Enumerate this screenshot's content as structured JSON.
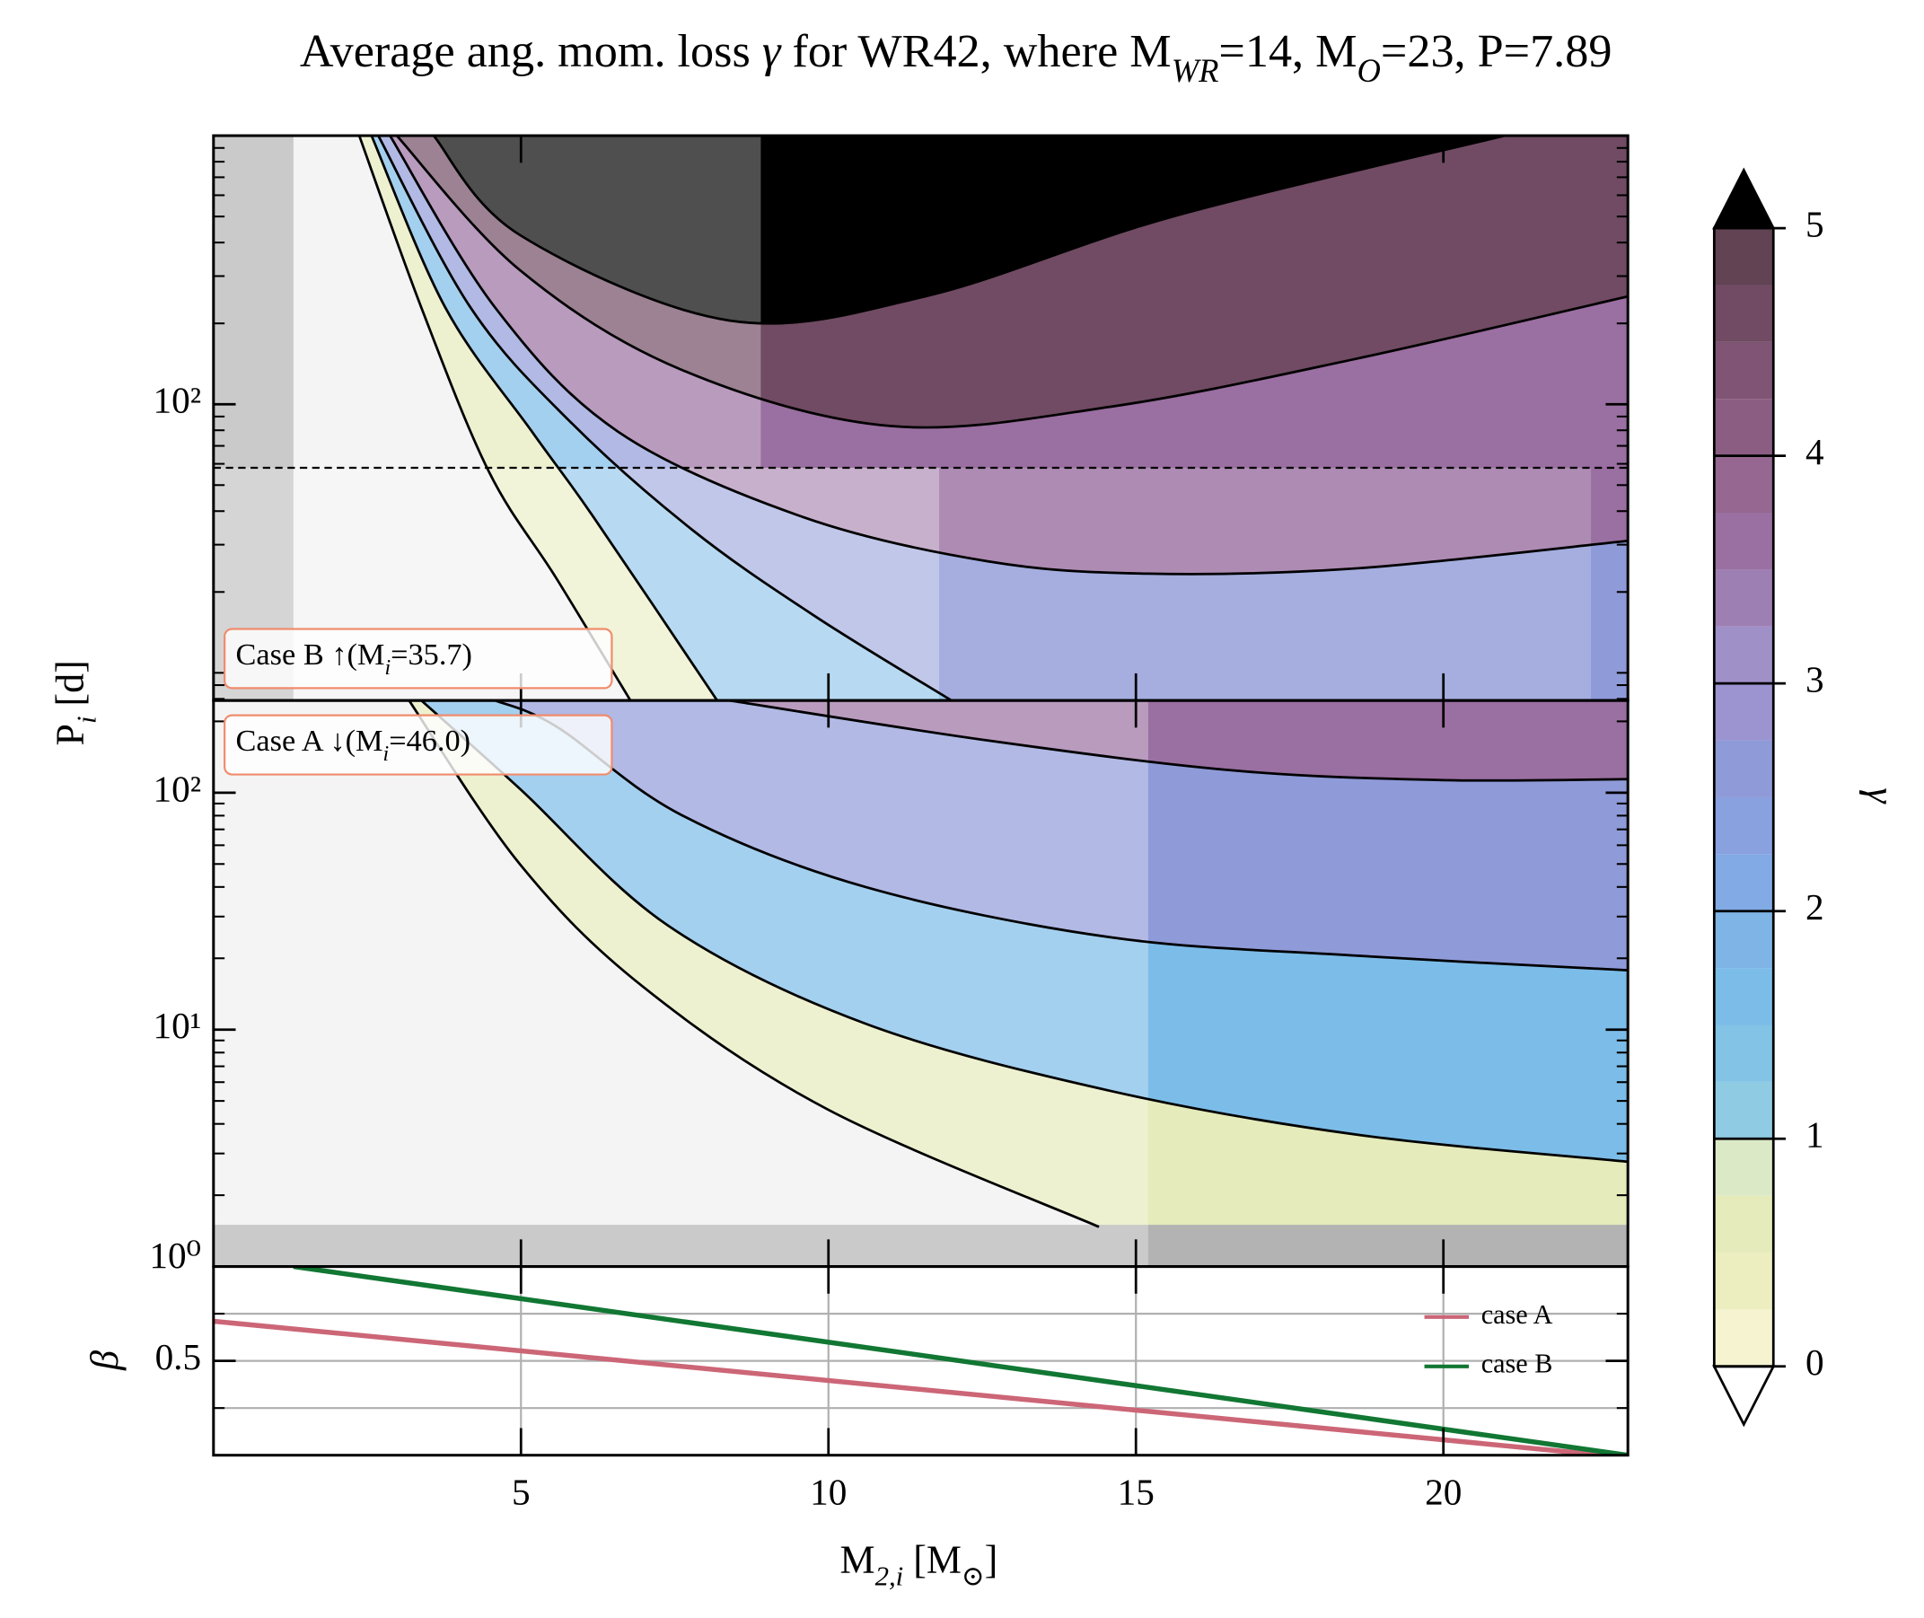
{
  "chart_data": {
    "type": "contour",
    "title": [
      {
        "text": "Average ang. mom. loss "
      },
      {
        "text": "γ",
        "italic": true
      },
      {
        "text": " for WR42, where M"
      },
      {
        "text": "WR",
        "sub": true,
        "italic": true
      },
      {
        "text": "=14, M"
      },
      {
        "text": "O",
        "sub": true,
        "italic": true
      },
      {
        "text": "=23, P=7.89"
      }
    ],
    "xlabel": [
      {
        "text": "M"
      },
      {
        "text": "2,i",
        "sub": true,
        "italic": true
      },
      {
        "text": " [M"
      },
      {
        "text": "⊙",
        "sub": true
      },
      {
        "text": "]"
      }
    ],
    "ylabel": [
      {
        "text": "P"
      },
      {
        "text": "i",
        "sub": true,
        "italic": true
      },
      {
        "text": " [d]"
      }
    ],
    "xlim": [
      0,
      23
    ],
    "xticks": [
      5,
      10,
      15,
      20
    ],
    "region_color": "#efefef",
    "invalid_color": "#b3b3b3",
    "line_color": "#000000",
    "panels": [
      {
        "ylim": [
          7.89,
          1000
        ],
        "log": true,
        "yticks": [
          {
            "value": 100,
            "label": "10²"
          }
        ],
        "annotation": [
          {
            "text": "Case B ↑(M"
          },
          {
            "text": "i",
            "sub": true,
            "italic": true
          },
          {
            "text": "=35.7)"
          }
        ],
        "dashed": 58,
        "invalid": [
          {
            "x": [
              0,
              1.3
            ],
            "y": [
              7.89,
              1000
            ]
          }
        ],
        "overlays": [
          {
            "x": [
              0,
              8.9
            ],
            "y": [
              58,
              1000
            ],
            "opacity": 0.31
          },
          {
            "x": [
              0,
              11.8
            ],
            "y": [
              7.89,
              58
            ],
            "opacity": 0.45
          },
          {
            "x": [
              11.8,
              22.4
            ],
            "y": [
              7.89,
              58
            ],
            "opacity": 0.2
          }
        ],
        "contours": [
          {
            "level": 0,
            "x": [
              2.37,
              3.38,
              4.48,
              5.58,
              6.78
            ],
            "y": [
              1000,
              229,
              56,
              22.4,
              7.89
            ]
          },
          {
            "level": 1,
            "x": [
              2.57,
              3.77,
              5.18,
              6.18,
              8.19
            ],
            "y": [
              1000,
              229,
              79,
              38,
              7.89
            ]
          },
          {
            "level": 2,
            "x": [
              2.68,
              4.18,
              5.78,
              7.79,
              9.79,
              12.0
            ],
            "y": [
              1000,
              229,
              87,
              34,
              16.2,
              7.89
            ]
          },
          {
            "level": 3,
            "x": [
              2.87,
              4.58,
              6.58,
              9.59,
              12.6,
              15.2,
              18.6,
              23
            ],
            "y": [
              1000,
              229,
              79,
              38,
              26,
              23.4,
              24.5,
              31
            ]
          },
          {
            "level": 4,
            "x": [
              2.98,
              4.98,
              7.59,
              11.0,
              14.6,
              18.6,
              23
            ],
            "y": [
              1000,
              316,
              135,
              83,
              98,
              148,
              252
            ]
          },
          {
            "level": 5,
            "x": [
              3.58,
              4.98,
              8.39,
              11.6,
              15.6,
              21.0
            ],
            "y": [
              1000,
              427,
              205,
              253,
              500,
              1000
            ]
          }
        ]
      },
      {
        "ylim": [
          1,
          245
        ],
        "log": true,
        "yticks": [
          {
            "value": 1,
            "label": "10⁰"
          },
          {
            "value": 10,
            "label": "10¹"
          },
          {
            "value": 100,
            "label": "10²"
          }
        ],
        "annotation": [
          {
            "text": "Case A ↓(M"
          },
          {
            "text": "i",
            "sub": true,
            "italic": true
          },
          {
            "text": "=46.0)"
          }
        ],
        "invalid": [
          {
            "x": [
              0,
              23
            ],
            "y": [
              1,
              1.5
            ]
          }
        ],
        "overlays": [
          {
            "x": [
              0,
              15.2
            ],
            "y": [
              1,
              245
            ],
            "opacity": 0.31
          }
        ],
        "contours": [
          {
            "level": 0,
            "x": [
              3.18,
              4.98,
              6.98,
              9.99,
              14.4
            ],
            "y": [
              245,
              50,
              15.2,
              4.6,
              1.47
            ]
          },
          {
            "level": 1,
            "x": [
              3.38,
              4.98,
              7.39,
              10.6,
              14.6,
              18.6,
              23
            ],
            "y": [
              245,
              104,
              27.5,
              10.6,
              5.5,
              3.6,
              2.77
            ]
          },
          {
            "level": 2,
            "x": [
              4.58,
              5.58,
              7.59,
              10.6,
              14.6,
              18.6,
              23
            ],
            "y": [
              245,
              190,
              81,
              40,
              24.5,
              20.5,
              17.8
            ]
          },
          {
            "level": 3,
            "x": [
              8.39,
              12.6,
              16.6,
              20.0,
              23
            ],
            "y": [
              245,
              166,
              124,
              113,
              114
            ]
          }
        ]
      }
    ],
    "beta": {
      "ylabel": [
        {
          "text": "β",
          "italic": true
        }
      ],
      "ylim": [
        0,
        1
      ],
      "yticks": [
        0.5
      ],
      "ygrid": [
        0.25,
        0.5,
        0.75
      ],
      "xgrid": true,
      "grid_color": "#b0b0b0",
      "legend": "lower right",
      "series": [
        {
          "name": "case A",
          "color": "#cc6677",
          "x": [
            0,
            22.6
          ],
          "values": [
            0.71,
            0
          ]
        },
        {
          "name": "case B",
          "color": "#117733",
          "x": [
            1.3,
            23
          ],
          "values": [
            1,
            0
          ]
        }
      ]
    },
    "colorbar": {
      "label": [
        {
          "text": "γ",
          "italic": true
        }
      ],
      "lim": [
        0,
        5
      ],
      "ticks": [
        0,
        1,
        2,
        3,
        4,
        5
      ],
      "levels": [
        0,
        0.25,
        0.5,
        0.75,
        1,
        1.25,
        1.5,
        1.75,
        2,
        2.25,
        2.5,
        2.75,
        3,
        3.25,
        3.5,
        3.75,
        4,
        4.25,
        4.5,
        4.75,
        5
      ],
      "colors": [
        "#f5f3d0",
        "#eceec0",
        "#e5ebba",
        "#dce9c7",
        "#8fcbe2",
        "#82c3e6",
        "#7cbce8",
        "#7fb4e6",
        "#82aae4",
        "#8aa1e0",
        "#8f9ad8",
        "#9b94d0",
        "#a090c8",
        "#9d7fb4",
        "#9a6fa1",
        "#956791",
        "#8c5d83",
        "#7f5474",
        "#704b63",
        "#614353"
      ],
      "over": "#000000",
      "under": "#ffffff"
    }
  }
}
